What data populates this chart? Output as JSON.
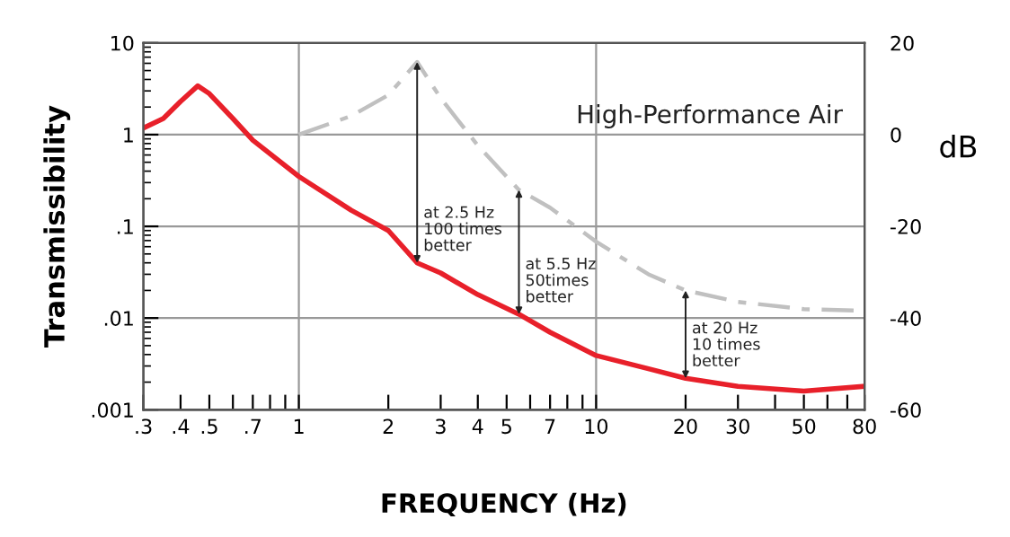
{
  "chart_data": {
    "type": "line",
    "xlabel": "FREQUENCY (Hz)",
    "ylabel": "Transmissibility",
    "y2label": "dB",
    "log": "xy",
    "xlim": [
      0.3,
      80
    ],
    "ylim": [
      0.001,
      10
    ],
    "y2lim": [
      -60,
      20
    ],
    "xticks": [
      {
        "value": 0.3,
        "label": ".3"
      },
      {
        "value": 0.4,
        "label": ".4"
      },
      {
        "value": 0.5,
        "label": ".5"
      },
      {
        "value": 0.6,
        "label": null
      },
      {
        "value": 0.7,
        "label": ".7"
      },
      {
        "value": 0.8,
        "label": null
      },
      {
        "value": 0.9,
        "label": null
      },
      1,
      2,
      3,
      4,
      5,
      {
        "value": 6,
        "label": null
      },
      7,
      {
        "value": 8,
        "label": null
      },
      {
        "value": 9,
        "label": null
      },
      10,
      20,
      30,
      {
        "value": 40,
        "label": null
      },
      50,
      {
        "value": 60,
        "label": null
      },
      {
        "value": 70,
        "label": null
      },
      80
    ],
    "yticks": [
      {
        "value": 0.001,
        "label": ".001"
      },
      {
        "value": 0.01,
        "label": ".01"
      },
      {
        "value": 0.1,
        "label": ".1"
      },
      1,
      10
    ],
    "y2ticks": [
      -60,
      -40,
      -20,
      0,
      20
    ],
    "grid": "y",
    "legend": false,
    "ref_lines": [
      {
        "axis": "x",
        "value": 1,
        "color": "#999999"
      },
      {
        "axis": "x",
        "value": 10,
        "color": "#999999"
      }
    ],
    "series": [
      {
        "color": "#e8202a",
        "line_style": "solid",
        "x": [
          0.3,
          0.35,
          0.4,
          0.457,
          0.5,
          0.6,
          0.7,
          1,
          1.5,
          2,
          2.5,
          3,
          4,
          5.5,
          7,
          10,
          15,
          20,
          30,
          50,
          80
        ],
        "values": [
          1.18,
          1.5,
          2.3,
          3.4,
          2.8,
          1.5,
          0.87,
          0.35,
          0.15,
          0.09,
          0.04,
          0.031,
          0.018,
          0.011,
          0.007,
          0.0039,
          0.0028,
          0.0022,
          0.0018,
          0.0016,
          0.0018
        ]
      },
      {
        "name": "High-Performance Air",
        "color": "#c0c0c0",
        "line_style": "dashed",
        "x": [
          1,
          1.5,
          2,
          2.5,
          3,
          4,
          5.5,
          7,
          10,
          15,
          20,
          30,
          50,
          80
        ],
        "values": [
          1.0,
          1.6,
          2.7,
          6.2,
          2.5,
          0.76,
          0.25,
          0.16,
          0.068,
          0.03,
          0.02,
          0.015,
          0.0125,
          0.012
        ]
      }
    ],
    "annotations": [
      {
        "text": "at 2.5 Hz\n100 times\nbetter",
        "x": 2.5,
        "y": 0.04
      },
      {
        "text": "at 5.5 Hz\n50times\nbetter",
        "x": 5.5,
        "y": 0.011
      },
      {
        "text": "at 20 Hz\n10 times\nbetter",
        "x": 20,
        "y": 0.0022
      }
    ]
  }
}
